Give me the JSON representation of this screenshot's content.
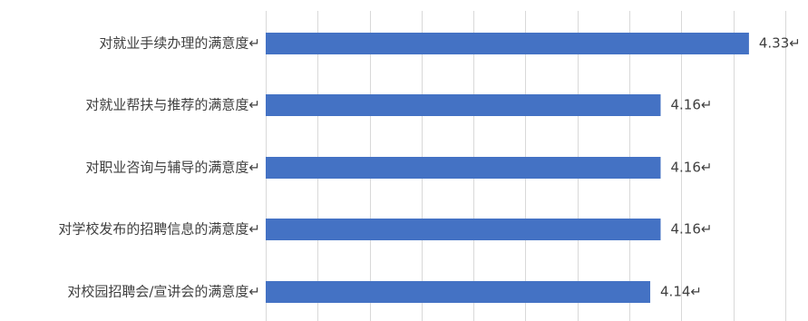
{
  "chart_data": {
    "type": "bar",
    "orientation": "horizontal",
    "categories": [
      "对就业手续办理的满意度↵",
      "对就业帮扶与推荐的满意度↵",
      "对职业咨询与辅导的满意度↵",
      "对学校发布的招聘信息的满意度↵",
      "对校园招聘会/宣讲会的满意度↵"
    ],
    "values": [
      4.33,
      4.16,
      4.16,
      4.16,
      4.14
    ],
    "value_labels": [
      "4.33↵",
      "4.16↵",
      "4.16↵",
      "4.16↵",
      "4.14↵"
    ],
    "title": "",
    "xlabel": "",
    "ylabel": "",
    "xlim": [
      3.4,
      4.4
    ],
    "x_gridlines": [
      3.4,
      3.5,
      3.6,
      3.7,
      3.8,
      3.9,
      4.0,
      4.1,
      4.2,
      4.3,
      4.4
    ],
    "grid": true,
    "legend": "none",
    "bar_color": "#4472c4",
    "grid_color": "#d9d9d9",
    "text_color": "#404040"
  }
}
